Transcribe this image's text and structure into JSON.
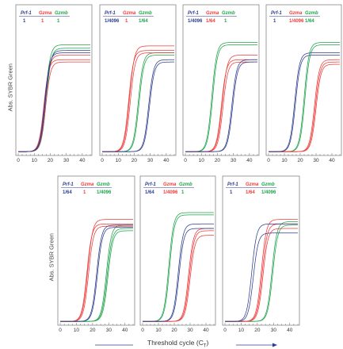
{
  "figure": {
    "ylabel": "Abs. SYBR Green",
    "xlabel": "Threshold cycle (C",
    "xlabel_sub": "T",
    "xlabel_close": ")"
  },
  "colors": {
    "Prf-1": "#2e3c8f",
    "Gzma": "#ee3b3b",
    "Gzmb": "#1fa34a",
    "axis": "#555555"
  },
  "chart_data": [
    {
      "type": "line",
      "panel": 1,
      "legend": [
        "Prf-1",
        "Gzma",
        "Gzmb"
      ],
      "ratios": [
        "1",
        "1",
        "1"
      ],
      "xlim": [
        0,
        45
      ],
      "xticks": [
        0,
        10,
        20,
        30,
        40
      ],
      "ylim": [
        0,
        1
      ],
      "series": [
        {
          "name": "Prf-1",
          "ct": [
            16.5,
            17
          ],
          "plateau": [
            0.86,
            0.88
          ]
        },
        {
          "name": "Gzma",
          "ct": [
            16,
            16.6,
            17.1
          ],
          "plateau": [
            0.8,
            0.84,
            0.78
          ]
        },
        {
          "name": "Gzmb",
          "ct": [
            17,
            17.5
          ],
          "plateau": [
            0.93,
            0.9
          ]
        }
      ]
    },
    {
      "type": "line",
      "panel": 2,
      "legend": [
        "Prf-1",
        "Gzma",
        "Gzmb"
      ],
      "ratios": [
        "1/4096",
        "1",
        "1/64"
      ],
      "xlim": [
        0,
        45
      ],
      "xticks": [
        0,
        10,
        20,
        30,
        40
      ],
      "ylim": [
        0,
        1
      ],
      "series": [
        {
          "name": "Prf-1",
          "ct": [
            29,
            29.5
          ],
          "plateau": [
            0.8,
            0.78
          ]
        },
        {
          "name": "Gzma",
          "ct": [
            16.5,
            17,
            17.5
          ],
          "plateau": [
            0.88,
            0.92,
            0.86
          ]
        },
        {
          "name": "Gzmb",
          "ct": [
            22.5,
            23
          ],
          "plateau": [
            0.86,
            0.84
          ]
        }
      ]
    },
    {
      "type": "line",
      "panel": 3,
      "legend": [
        "Prf-1",
        "Gzma",
        "Gzmb"
      ],
      "ratios": [
        "1/4096",
        "1/64",
        "1"
      ],
      "xlim": [
        0,
        45
      ],
      "xticks": [
        0,
        10,
        20,
        30,
        40
      ],
      "ylim": [
        0,
        1
      ],
      "series": [
        {
          "name": "Prf-1",
          "ct": [
            29,
            29.5
          ],
          "plateau": [
            0.8,
            0.78
          ]
        },
        {
          "name": "Gzma",
          "ct": [
            22.5,
            23,
            23.5
          ],
          "plateau": [
            0.8,
            0.84,
            0.78
          ]
        },
        {
          "name": "Gzmb",
          "ct": [
            16.5,
            17
          ],
          "plateau": [
            0.95,
            0.93
          ]
        }
      ]
    },
    {
      "type": "line",
      "panel": 4,
      "legend": [
        "Prf-1",
        "Gzma",
        "Gzmb"
      ],
      "ratios": [
        "1",
        "1/4096",
        "1/64"
      ],
      "xlim": [
        0,
        45
      ],
      "xticks": [
        0,
        10,
        20,
        30,
        40
      ],
      "ylim": [
        0,
        1
      ],
      "series": [
        {
          "name": "Prf-1",
          "ct": [
            16.5,
            17
          ],
          "plateau": [
            0.86,
            0.84
          ]
        },
        {
          "name": "Gzma",
          "ct": [
            29,
            29.5,
            30
          ],
          "plateau": [
            0.8,
            0.78,
            0.76
          ]
        },
        {
          "name": "Gzmb",
          "ct": [
            22.5,
            23
          ],
          "plateau": [
            0.95,
            0.93
          ]
        }
      ]
    },
    {
      "type": "line",
      "panel": 5,
      "legend": [
        "Prf-1",
        "Gzma",
        "Gzmb"
      ],
      "ratios": [
        "1/64",
        "1",
        "1/4096"
      ],
      "xlim": [
        0,
        45
      ],
      "xticks": [
        0,
        10,
        20,
        30,
        40
      ],
      "ylim": [
        0,
        1
      ],
      "series": [
        {
          "name": "Prf-1",
          "ct": [
            22.5,
            23
          ],
          "plateau": [
            0.85,
            0.83
          ]
        },
        {
          "name": "Gzma",
          "ct": [
            16.5,
            17,
            17.5
          ],
          "plateau": [
            0.86,
            0.9,
            0.84
          ]
        },
        {
          "name": "Gzmb",
          "ct": [
            28.5,
            29,
            29.5
          ],
          "plateau": [
            0.85,
            0.82,
            0.8
          ]
        }
      ]
    },
    {
      "type": "line",
      "panel": 6,
      "legend": [
        "Prf-1",
        "Gzma",
        "Gzmb"
      ],
      "ratios": [
        "1/64",
        "1/4096",
        "1"
      ],
      "xlim": [
        0,
        45
      ],
      "xticks": [
        0,
        10,
        20,
        30,
        40
      ],
      "ylim": [
        0,
        1
      ],
      "series": [
        {
          "name": "Prf-1",
          "ct": [
            22.5,
            23
          ],
          "plateau": [
            0.86,
            0.82
          ]
        },
        {
          "name": "Gzma",
          "ct": [
            29,
            29.5,
            30
          ],
          "plateau": [
            0.82,
            0.8,
            0.76
          ]
        },
        {
          "name": "Gzmb",
          "ct": [
            16.5,
            17
          ],
          "plateau": [
            0.96,
            0.94
          ]
        }
      ]
    },
    {
      "type": "line",
      "panel": 7,
      "legend": [
        "Prf-1",
        "Gzma",
        "Gzmb"
      ],
      "ratios": [
        "1",
        "1/64",
        "1/4096"
      ],
      "xlim": [
        0,
        45
      ],
      "xticks": [
        0,
        10,
        20,
        30,
        40
      ],
      "ylim": [
        0,
        1
      ],
      "series": [
        {
          "name": "Prf-1",
          "ct": [
            16.5,
            17.5
          ],
          "plateau": [
            0.86,
            0.78
          ]
        },
        {
          "name": "Gzma",
          "ct": [
            22.5,
            23,
            23.5
          ],
          "plateau": [
            0.9,
            0.86,
            0.82
          ]
        },
        {
          "name": "Gzmb",
          "ct": [
            29,
            29.5
          ],
          "plateau": [
            0.88,
            0.85
          ]
        }
      ]
    }
  ]
}
